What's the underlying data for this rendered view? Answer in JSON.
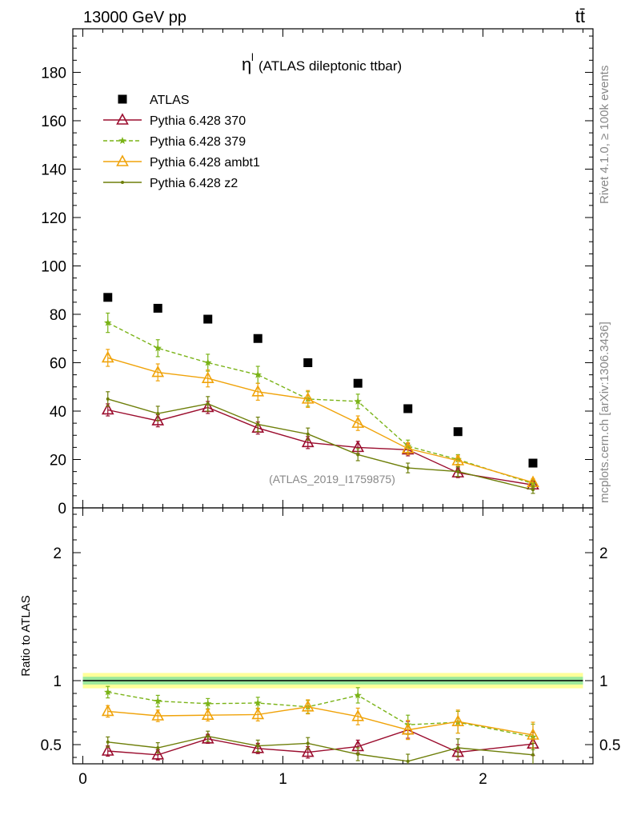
{
  "header": {
    "energy_label": "13000 GeV pp",
    "process_label": "tt̄"
  },
  "side_labels": {
    "rivet": "Rivet 4.1.0, ≥ 100k events",
    "mcplots": "mcplots.cern.ch [arXiv:1306.3436]"
  },
  "chart_data": {
    "type": "scatter",
    "title_symbol": "η",
    "title_superscript": "l",
    "title": "(ATLAS dileptonic ttbar)",
    "analysis_id": "(ATLAS_2019_I1759875)",
    "x": [
      0.125,
      0.375,
      0.625,
      0.875,
      1.125,
      1.375,
      1.625,
      1.875,
      2.25
    ],
    "xlim": [
      -0.05,
      2.55
    ],
    "xticks": [
      "0",
      "1",
      "2"
    ],
    "main": {
      "ylim": [
        0,
        198
      ],
      "yticks": [
        "0",
        "20",
        "40",
        "60",
        "80",
        "100",
        "120",
        "140",
        "160",
        "180"
      ],
      "data": {
        "name": "ATLAS",
        "color": "#000000",
        "values": [
          87,
          82.5,
          78,
          70,
          60,
          51.5,
          41,
          31.5,
          18.5
        ]
      },
      "series": [
        {
          "name": "Pythia 6.428 370",
          "color": "#9b0d2e",
          "marker": "triangle-open",
          "dashed": false,
          "values": [
            40.5,
            36,
            41.5,
            33,
            27,
            25,
            24,
            14.5,
            9.5
          ],
          "errors": [
            2.5,
            2.5,
            2.5,
            2.5,
            2.5,
            2.5,
            2.5,
            2,
            1.5
          ]
        },
        {
          "name": "Pythia 6.428 379",
          "color": "#7ab317",
          "marker": "star",
          "dashed": true,
          "values": [
            76.5,
            66,
            60,
            55,
            45,
            44,
            25.5,
            20,
            10
          ],
          "errors": [
            4,
            3.5,
            3.5,
            3.5,
            3,
            3,
            2.5,
            2,
            1.5
          ]
        },
        {
          "name": "Pythia 6.428 ambt1",
          "color": "#f0a30a",
          "marker": "triangle-open",
          "dashed": false,
          "values": [
            62,
            56,
            53.5,
            48,
            45,
            35,
            24.5,
            19.5,
            10.5
          ],
          "errors": [
            3.5,
            3.5,
            3.5,
            3.5,
            3.5,
            3,
            2.5,
            2,
            1.5
          ]
        },
        {
          "name": "Pythia 6.428 z2",
          "color": "#6e7f0a",
          "marker": "dot",
          "dashed": false,
          "values": [
            45,
            39,
            43,
            34.5,
            30.5,
            22,
            16.5,
            15,
            7.5
          ],
          "errors": [
            3,
            3,
            3,
            3,
            2.5,
            2.5,
            2,
            2,
            1.5
          ]
        }
      ]
    },
    "ratio": {
      "ylabel": "Ratio to ATLAS",
      "ylim": [
        0.35,
        2.35
      ],
      "yticks": [
        "0.5",
        "1",
        "2"
      ],
      "reference": 1,
      "band_inner": [
        0.97,
        1.03
      ],
      "band_outer": [
        0.94,
        1.06
      ],
      "series": [
        {
          "name": "Pythia 6.428 370",
          "values": [
            0.45,
            0.42,
            0.545,
            0.47,
            0.44,
            0.485,
            0.615,
            0.44,
            0.505
          ],
          "errors": [
            0.04,
            0.04,
            0.035,
            0.04,
            0.045,
            0.05,
            0.065,
            0.06,
            0.09
          ]
        },
        {
          "name": "Pythia 6.428 379",
          "values": [
            0.91,
            0.84,
            0.82,
            0.825,
            0.795,
            0.885,
            0.655,
            0.675,
            0.56
          ],
          "errors": [
            0.045,
            0.045,
            0.04,
            0.045,
            0.05,
            0.06,
            0.075,
            0.085,
            0.1
          ]
        },
        {
          "name": "Pythia 6.428 ambt1",
          "values": [
            0.76,
            0.725,
            0.73,
            0.735,
            0.795,
            0.72,
            0.615,
            0.68,
            0.575
          ],
          "errors": [
            0.045,
            0.045,
            0.045,
            0.05,
            0.055,
            0.065,
            0.075,
            0.09,
            0.1
          ]
        },
        {
          "name": "Pythia 6.428 z2",
          "values": [
            0.52,
            0.475,
            0.565,
            0.49,
            0.51,
            0.425,
            0.37,
            0.475,
            0.42
          ],
          "errors": [
            0.04,
            0.04,
            0.04,
            0.045,
            0.045,
            0.05,
            0.055,
            0.07,
            0.09
          ]
        }
      ]
    }
  }
}
